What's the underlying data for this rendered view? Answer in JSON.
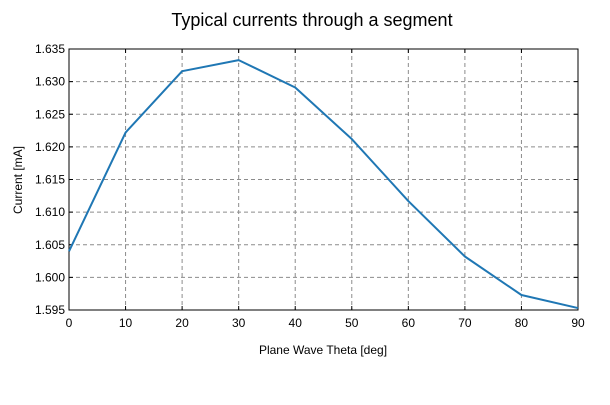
{
  "chart_data": {
    "type": "line",
    "title": "Typical currents through a segment",
    "xlabel": "Plane Wave Theta [deg]",
    "ylabel": "Current [mA]",
    "xlim": [
      0,
      90
    ],
    "ylim": [
      1.595,
      1.635
    ],
    "x_ticks": [
      "0",
      "10",
      "20",
      "30",
      "40",
      "50",
      "60",
      "70",
      "80",
      "90"
    ],
    "y_ticks": [
      "1.595",
      "1.600",
      "1.605",
      "1.610",
      "1.615",
      "1.620",
      "1.625",
      "1.630",
      "1.635"
    ],
    "grid": true,
    "x": [
      0,
      10,
      20,
      30,
      40,
      50,
      60,
      70,
      80,
      90
    ],
    "series": [
      {
        "values": [
          1.604,
          1.6222,
          1.6316,
          1.6333,
          1.6291,
          1.6212,
          1.6117,
          1.6032,
          1.5973,
          1.5953
        ],
        "color": "#1f77b4"
      }
    ]
  }
}
